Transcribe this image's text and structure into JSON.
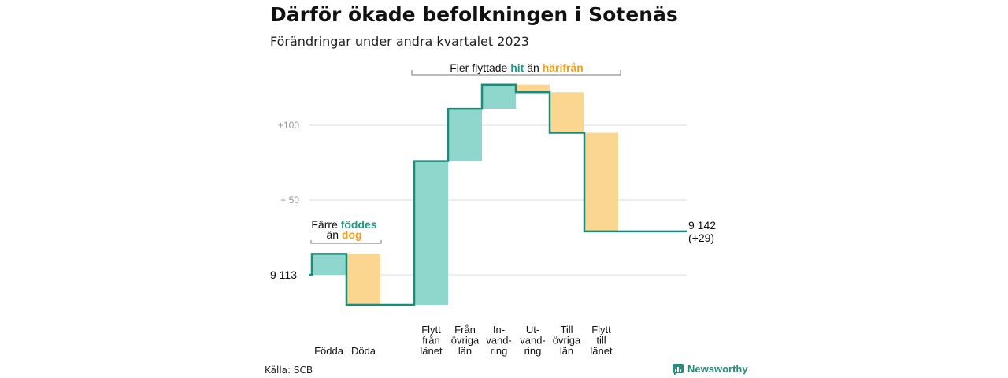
{
  "title": "Därför ökade befolkningen i Sotenäs",
  "subtitle": "Förändringar under andra kvartalet 2023",
  "source": "Källa: SCB",
  "brand": "Newsworthy",
  "colors": {
    "increase": "#8fd6cc",
    "decrease": "#fad690",
    "line": "#1a8c7c",
    "accent_teal": "#1f9a89",
    "accent_orange": "#f0a020"
  },
  "annotations": {
    "births_line1": "Färre",
    "births_hl1": "föddes",
    "births_line2": "än",
    "births_hl2": "dog",
    "moves_pre": "Fler flyttade",
    "moves_hl1": "hit",
    "moves_mid": "än",
    "moves_hl2": "härifrån"
  },
  "chart_data": {
    "type": "waterfall",
    "start_value": 9113,
    "start_label": "9  113",
    "end_label_value": "9 142",
    "end_label_change": "(+29)",
    "ytick_labels": [
      "+100",
      "+  50"
    ],
    "ytick_values": [
      100,
      50
    ],
    "ylim": [
      -20,
      130
    ],
    "grid": true,
    "steps": [
      {
        "lines": [
          "Födda"
        ],
        "change": 14
      },
      {
        "lines": [
          "Döda"
        ],
        "change": -34
      },
      {
        "lines": [
          "Flytt",
          "från",
          "länet"
        ],
        "change": 96
      },
      {
        "lines": [
          "Från",
          "övriga",
          "län"
        ],
        "change": 35
      },
      {
        "lines": [
          "In-",
          "vand-",
          "ring"
        ],
        "change": 16
      },
      {
        "lines": [
          "Ut-",
          "vand-",
          "ring"
        ],
        "change": -5
      },
      {
        "lines": [
          "Till",
          "övriga",
          "län"
        ],
        "change": -27
      },
      {
        "lines": [
          "Flytt",
          "till",
          "länet"
        ],
        "change": -66
      }
    ],
    "gap_after": [
      1
    ]
  }
}
